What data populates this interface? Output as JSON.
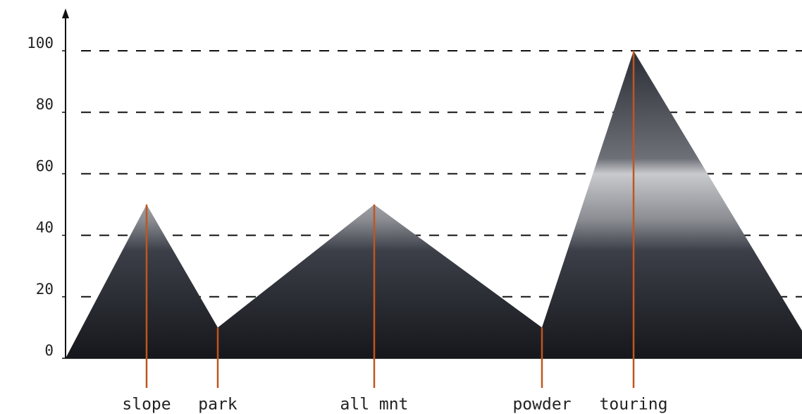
{
  "chart_data": {
    "type": "area",
    "categories": [
      null,
      "slope",
      "park",
      "all mnt",
      "powder",
      "touring",
      null
    ],
    "values": [
      0,
      50,
      10,
      50,
      10,
      100,
      9
    ],
    "line_color": "#c0561c",
    "ylim": [
      0,
      100
    ],
    "yticks": [
      0,
      20,
      40,
      60,
      80,
      100
    ],
    "grid": true
  }
}
